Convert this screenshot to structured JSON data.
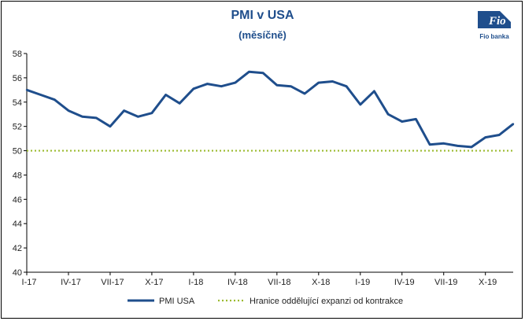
{
  "chart_data": {
    "type": "line",
    "title": "PMI v USA",
    "subtitle": "(měsíčně)",
    "ylim": [
      40,
      58
    ],
    "yticks": [
      40,
      42,
      44,
      46,
      48,
      50,
      52,
      54,
      56,
      58
    ],
    "x_labels": [
      {
        "label": "I-17",
        "index": 0
      },
      {
        "label": "IV-17",
        "index": 3
      },
      {
        "label": "VII-17",
        "index": 6
      },
      {
        "label": "X-17",
        "index": 9
      },
      {
        "label": "I-18",
        "index": 12
      },
      {
        "label": "IV-18",
        "index": 15
      },
      {
        "label": "VII-18",
        "index": 18
      },
      {
        "label": "X-18",
        "index": 21
      },
      {
        "label": "I-19",
        "index": 24
      },
      {
        "label": "IV-19",
        "index": 27
      },
      {
        "label": "VII-19",
        "index": 30
      },
      {
        "label": "X-19",
        "index": 33
      }
    ],
    "grid": false,
    "legend_position": "bottom",
    "series": [
      {
        "name": "PMI USA",
        "color": "#1f4e8c",
        "style": "solid",
        "values": [
          55.0,
          54.6,
          54.2,
          53.3,
          52.8,
          52.7,
          52.0,
          53.3,
          52.8,
          53.1,
          54.6,
          53.9,
          55.1,
          55.5,
          55.3,
          55.6,
          56.5,
          56.4,
          55.4,
          55.3,
          54.7,
          55.6,
          55.7,
          55.3,
          53.8,
          54.9,
          53.0,
          52.4,
          52.6,
          50.5,
          50.6,
          50.4,
          50.3,
          51.1,
          51.3,
          52.2
        ]
      },
      {
        "name": "Hranice oddělující expanzi od kontrakce",
        "color": "#9bbb2f",
        "style": "dotted",
        "values": [
          50,
          50
        ]
      }
    ]
  },
  "logo": {
    "text": "Fio",
    "caption": "Fio banka",
    "color": "#1f4e8c"
  }
}
